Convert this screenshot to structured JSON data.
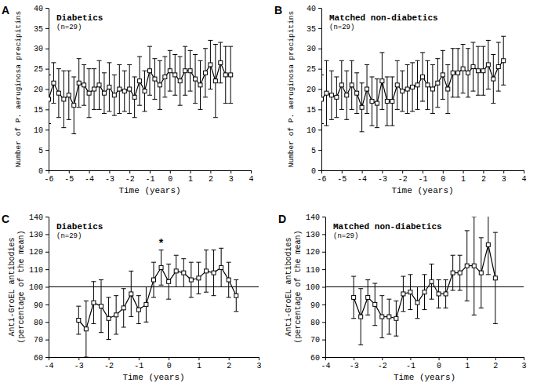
{
  "chart_data": [
    {
      "type": "line",
      "title": "A",
      "subtitle": "Diabetics",
      "annotations": [
        {
          "text": "(n=29)"
        }
      ],
      "x_label": "Time (years)",
      "y_label": [
        "Number of P. aeruginosa precipitins"
      ],
      "xlim": [
        -6,
        4
      ],
      "xticks": [
        -6,
        -5,
        -4,
        -3,
        -2,
        -1,
        0,
        1,
        2,
        3,
        4
      ],
      "ylim": [
        0,
        40
      ],
      "yticks": [
        0,
        5,
        10,
        15,
        20,
        25,
        30,
        35,
        40
      ],
      "grid": false,
      "color": "#000000",
      "marker": "square",
      "line_style": "solid",
      "x": [
        -6,
        -5.75,
        -5.5,
        -5.25,
        -5,
        -4.75,
        -4.5,
        -4.25,
        -4,
        -3.75,
        -3.5,
        -3.25,
        -3,
        -2.75,
        -2.5,
        -2.25,
        -2,
        -1.75,
        -1.5,
        -1.25,
        -1,
        -0.75,
        -0.5,
        -0.25,
        0,
        0.25,
        0.5,
        0.75,
        1,
        1.25,
        1.5,
        1.75,
        2,
        2.25,
        2.5,
        2.75,
        3
      ],
      "values": [
        17.5,
        21.5,
        19,
        17.5,
        18.5,
        16,
        21.5,
        21,
        19,
        20,
        21,
        19,
        20.5,
        18.5,
        20,
        19.5,
        20,
        18,
        22,
        19.5,
        24.5,
        22.5,
        21,
        23,
        24.5,
        23.5,
        22,
        24.5,
        24.5,
        22.5,
        21,
        24,
        26,
        22,
        26.5,
        23.5,
        23.5
      ],
      "errors": [
        6,
        5,
        6,
        7,
        6,
        7,
        6,
        5,
        6,
        5,
        6,
        5,
        6,
        5,
        6,
        5,
        6,
        5,
        6,
        5,
        6,
        5,
        6,
        5,
        5,
        5,
        6,
        6,
        5,
        6,
        6,
        6,
        6,
        9,
        5,
        7,
        7
      ]
    },
    {
      "type": "line",
      "title": "B",
      "subtitle": "Matched non-diabetics",
      "annotations": [
        {
          "text": "(n=29)"
        }
      ],
      "x_label": "Time (years)",
      "y_label": [
        "Number of P. aeruginosa precipitins"
      ],
      "xlim": [
        -6,
        4
      ],
      "xticks": [
        -6,
        -5,
        -4,
        -3,
        -2,
        -1,
        0,
        1,
        2,
        3,
        4
      ],
      "ylim": [
        0,
        40
      ],
      "yticks": [
        0,
        5,
        10,
        15,
        20,
        25,
        30,
        35,
        40
      ],
      "grid": false,
      "color": "#000000",
      "marker": "square",
      "line_style": "solid",
      "x": [
        -6,
        -5.75,
        -5.5,
        -5.25,
        -5,
        -4.75,
        -4.5,
        -4.25,
        -4,
        -3.75,
        -3.5,
        -3.25,
        -3,
        -2.75,
        -2.5,
        -2.25,
        -2,
        -1.75,
        -1.5,
        -1.25,
        -1,
        -0.75,
        -0.5,
        -0.25,
        0,
        0.25,
        0.5,
        0.75,
        1,
        1.25,
        1.5,
        1.75,
        2,
        2.25,
        2.5,
        2.75,
        3
      ],
      "values": [
        17.5,
        19,
        18.5,
        18,
        21,
        18.5,
        21,
        19,
        15.5,
        20,
        17,
        16.5,
        22,
        17,
        17,
        21,
        19.5,
        20,
        20.5,
        21,
        23,
        21,
        20,
        21.5,
        23.5,
        20,
        24,
        24,
        25,
        24,
        25.5,
        24.5,
        24.5,
        26,
        22.5,
        25.5,
        27
      ],
      "errors": [
        6,
        8,
        6,
        5,
        6,
        6,
        6,
        5,
        6,
        6,
        6,
        6,
        7,
        6,
        6,
        6,
        5,
        6,
        6,
        6,
        6,
        6,
        6,
        6,
        6,
        6,
        6,
        6,
        6,
        6,
        6,
        6,
        6,
        6,
        6,
        6,
        6
      ]
    },
    {
      "type": "line",
      "title": "C",
      "subtitle": "Diabetics",
      "annotations": [
        {
          "text": "(n=29)"
        },
        {
          "text": "*",
          "x": -0.25,
          "y": 123
        }
      ],
      "x_label": "Time (years)",
      "y_label": [
        "Anti-GroEL antibodies",
        "(percentage of the mean)"
      ],
      "xlim": [
        -4,
        3
      ],
      "xticks": [
        -4,
        -3,
        -2,
        -1,
        0,
        1,
        2,
        3
      ],
      "ylim": [
        60,
        140
      ],
      "yticks": [
        60,
        70,
        80,
        90,
        100,
        110,
        120,
        130,
        140
      ],
      "hlines": [
        100
      ],
      "grid": false,
      "color": "#000000",
      "marker": "square",
      "line_style": "solid",
      "x": [
        -3,
        -2.75,
        -2.5,
        -2.25,
        -2,
        -1.75,
        -1.5,
        -1.25,
        -1,
        -0.75,
        -0.5,
        -0.25,
        0,
        0.25,
        0.5,
        0.75,
        1,
        1.25,
        1.5,
        1.75,
        2,
        2.25
      ],
      "values": [
        81,
        76,
        91,
        89,
        82,
        84,
        88,
        96,
        87,
        90,
        104,
        111,
        103,
        109,
        108,
        104,
        105,
        109,
        108,
        111,
        104,
        95
      ],
      "errors": [
        8,
        16,
        12,
        15,
        12,
        11,
        11,
        13,
        8,
        10,
        10,
        10,
        10,
        9,
        8,
        10,
        9,
        12,
        13,
        11,
        10,
        9
      ]
    },
    {
      "type": "line",
      "title": "D",
      "subtitle": "Matched non-diabetics",
      "annotations": [
        {
          "text": "(n=29)"
        }
      ],
      "x_label": "Time (years)",
      "y_label": [
        "Anti-GroEL antibodies",
        "(percentage of the mean)"
      ],
      "xlim": [
        -4,
        3
      ],
      "xticks": [
        -4,
        -3,
        -2,
        -1,
        0,
        1,
        2,
        3
      ],
      "ylim": [
        60,
        140
      ],
      "yticks": [
        60,
        70,
        80,
        90,
        100,
        110,
        120,
        130,
        140
      ],
      "hlines": [
        100
      ],
      "grid": false,
      "color": "#000000",
      "marker": "square",
      "line_style": "solid",
      "x": [
        -3,
        -2.75,
        -2.5,
        -2.25,
        -2,
        -1.75,
        -1.5,
        -1.25,
        -1,
        -0.75,
        -0.5,
        -0.25,
        0,
        0.25,
        0.5,
        0.75,
        1,
        1.25,
        1.5,
        1.75,
        2
      ],
      "values": [
        94,
        83,
        94,
        90,
        83,
        83,
        82,
        96,
        97,
        91,
        97,
        103,
        96,
        96,
        108,
        108,
        112,
        112,
        108,
        124,
        105
      ],
      "errors": [
        12,
        16,
        10,
        12,
        12,
        10,
        10,
        10,
        10,
        9,
        10,
        10,
        8,
        8,
        10,
        10,
        20,
        28,
        20,
        17,
        26
      ]
    }
  ]
}
